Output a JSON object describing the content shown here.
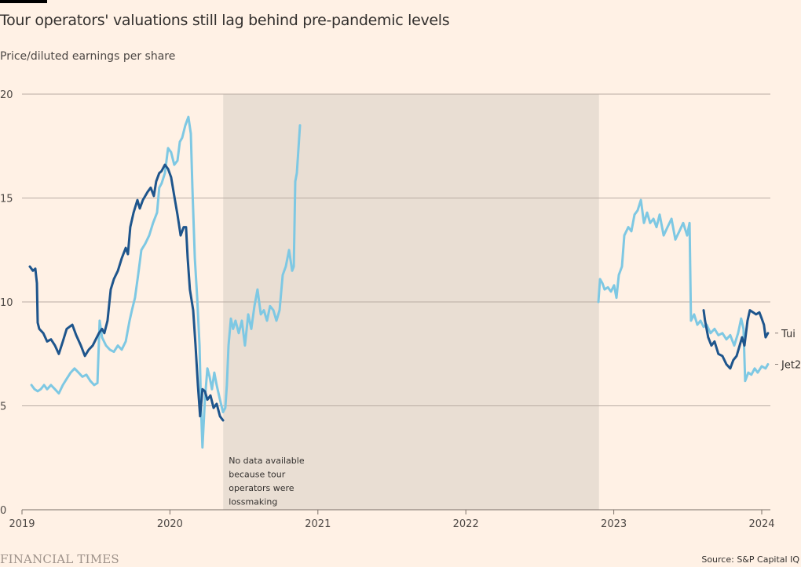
{
  "header": {
    "title": "Tour operators' valuations still lag behind pre-pandemic levels",
    "subtitle": "Price/diluted earnings per share"
  },
  "footer": {
    "brand": "FINANCIAL TIMES",
    "source": "Source: S&P Capital IQ"
  },
  "colors": {
    "background": "#fff1e5",
    "tui": "#1e558c",
    "jet2": "#7ec8e3",
    "shading": "#e9ded3",
    "gridline": "#b9aca3",
    "axis": "#7a6f68"
  },
  "chart_data": {
    "type": "line",
    "title": "Tour operators' valuations still lag behind pre-pandemic levels",
    "subtitle": "Price/diluted earnings per share",
    "xlabel": "",
    "ylabel": "Price/diluted earnings per share",
    "xlim": [
      2019.0,
      2024.06
    ],
    "ylim": [
      0,
      20
    ],
    "yticks": [
      0,
      5,
      10,
      15,
      20
    ],
    "ytick_labels": [
      "0",
      "5",
      "10",
      "15",
      "20"
    ],
    "xticks": [
      2019,
      2020,
      2021,
      2022,
      2023,
      2024
    ],
    "xtick_labels": [
      "2019",
      "2020",
      "2021",
      "2022",
      "2023",
      "2024"
    ],
    "grid": true,
    "legend": "right-end-labels",
    "shaded_regions": [
      {
        "from": 2020.36,
        "to": 2022.9,
        "annotation": [
          "No data available",
          "because tour",
          "operators were",
          "lossmaking"
        ]
      }
    ],
    "series": [
      {
        "name": "Tui",
        "label_value": 8.5,
        "segments": [
          [
            [
              2019.053,
              11.7
            ],
            [
              2019.074,
              11.5
            ],
            [
              2019.09,
              11.6
            ],
            [
              2019.101,
              10.9
            ],
            [
              2019.106,
              9.0
            ],
            [
              2019.117,
              8.7
            ],
            [
              2019.144,
              8.5
            ],
            [
              2019.17,
              8.1
            ],
            [
              2019.196,
              8.2
            ],
            [
              2019.223,
              7.9
            ],
            [
              2019.249,
              7.5
            ],
            [
              2019.276,
              8.1
            ],
            [
              2019.302,
              8.7
            ],
            [
              2019.34,
              8.9
            ],
            [
              2019.366,
              8.4
            ],
            [
              2019.398,
              7.9
            ],
            [
              2019.425,
              7.4
            ],
            [
              2019.451,
              7.7
            ],
            [
              2019.478,
              7.9
            ],
            [
              2019.499,
              8.2
            ],
            [
              2019.52,
              8.5
            ],
            [
              2019.541,
              8.7
            ],
            [
              2019.557,
              8.5
            ],
            [
              2019.578,
              9.1
            ],
            [
              2019.6,
              10.6
            ],
            [
              2019.621,
              11.1
            ],
            [
              2019.648,
              11.5
            ],
            [
              2019.674,
              12.1
            ],
            [
              2019.701,
              12.6
            ],
            [
              2019.716,
              12.3
            ],
            [
              2019.732,
              13.6
            ],
            [
              2019.754,
              14.3
            ],
            [
              2019.78,
              14.9
            ],
            [
              2019.796,
              14.5
            ],
            [
              2019.817,
              14.9
            ],
            [
              2019.849,
              15.3
            ],
            [
              2019.87,
              15.5
            ],
            [
              2019.891,
              15.1
            ],
            [
              2019.907,
              15.8
            ],
            [
              2019.928,
              16.2
            ],
            [
              2019.944,
              16.3
            ],
            [
              2019.966,
              16.6
            ],
            [
              2019.987,
              16.4
            ],
            [
              2020.008,
              16.0
            ],
            [
              2020.029,
              15.1
            ],
            [
              2020.051,
              14.2
            ],
            [
              2020.072,
              13.2
            ],
            [
              2020.093,
              13.6
            ],
            [
              2020.109,
              13.6
            ],
            [
              2020.12,
              12.1
            ],
            [
              2020.135,
              10.6
            ],
            [
              2020.157,
              9.6
            ],
            [
              2020.173,
              7.9
            ],
            [
              2020.189,
              6.0
            ],
            [
              2020.204,
              4.5
            ],
            [
              2020.22,
              5.8
            ],
            [
              2020.236,
              5.7
            ],
            [
              2020.253,
              5.3
            ],
            [
              2020.274,
              5.5
            ],
            [
              2020.295,
              4.9
            ],
            [
              2020.316,
              5.1
            ],
            [
              2020.338,
              4.5
            ],
            [
              2020.359,
              4.3
            ]
          ],
          [
            [
              2023.607,
              9.6
            ],
            [
              2023.617,
              9.1
            ],
            [
              2023.638,
              8.3
            ],
            [
              2023.66,
              7.9
            ],
            [
              2023.681,
              8.1
            ],
            [
              2023.707,
              7.5
            ],
            [
              2023.734,
              7.4
            ],
            [
              2023.761,
              7.0
            ],
            [
              2023.787,
              6.8
            ],
            [
              2023.808,
              7.2
            ],
            [
              2023.83,
              7.4
            ],
            [
              2023.851,
              7.9
            ],
            [
              2023.867,
              8.3
            ],
            [
              2023.883,
              7.9
            ],
            [
              2023.904,
              9.1
            ],
            [
              2023.92,
              9.6
            ],
            [
              2023.941,
              9.5
            ],
            [
              2023.962,
              9.4
            ],
            [
              2023.984,
              9.5
            ],
            [
              2024.0,
              9.2
            ],
            [
              2024.015,
              8.9
            ],
            [
              2024.026,
              8.3
            ],
            [
              2024.042,
              8.5
            ]
          ]
        ]
      },
      {
        "name": "Jet2",
        "label_value": 7.0,
        "segments": [
          [
            [
              2019.064,
              6.0
            ],
            [
              2019.085,
              5.8
            ],
            [
              2019.106,
              5.7
            ],
            [
              2019.127,
              5.8
            ],
            [
              2019.149,
              6.0
            ],
            [
              2019.17,
              5.8
            ],
            [
              2019.196,
              6.0
            ],
            [
              2019.223,
              5.8
            ],
            [
              2019.249,
              5.6
            ],
            [
              2019.276,
              6.0
            ],
            [
              2019.302,
              6.3
            ],
            [
              2019.329,
              6.6
            ],
            [
              2019.355,
              6.8
            ],
            [
              2019.382,
              6.6
            ],
            [
              2019.408,
              6.4
            ],
            [
              2019.435,
              6.5
            ],
            [
              2019.462,
              6.2
            ],
            [
              2019.488,
              6.0
            ],
            [
              2019.51,
              6.1
            ],
            [
              2019.525,
              9.1
            ],
            [
              2019.541,
              8.3
            ],
            [
              2019.568,
              7.9
            ],
            [
              2019.594,
              7.7
            ],
            [
              2019.621,
              7.6
            ],
            [
              2019.648,
              7.9
            ],
            [
              2019.674,
              7.7
            ],
            [
              2019.701,
              8.1
            ],
            [
              2019.727,
              9.1
            ],
            [
              2019.743,
              9.6
            ],
            [
              2019.764,
              10.2
            ],
            [
              2019.785,
              11.3
            ],
            [
              2019.807,
              12.5
            ],
            [
              2019.833,
              12.8
            ],
            [
              2019.86,
              13.2
            ],
            [
              2019.886,
              13.8
            ],
            [
              2019.913,
              14.3
            ],
            [
              2019.928,
              15.5
            ],
            [
              2019.944,
              15.7
            ],
            [
              2019.966,
              16.2
            ],
            [
              2019.987,
              17.4
            ],
            [
              2020.008,
              17.2
            ],
            [
              2020.029,
              16.6
            ],
            [
              2020.051,
              16.8
            ],
            [
              2020.067,
              17.7
            ],
            [
              2020.083,
              17.9
            ],
            [
              2020.104,
              18.5
            ],
            [
              2020.125,
              18.9
            ],
            [
              2020.141,
              18.1
            ],
            [
              2020.152,
              15.5
            ],
            [
              2020.168,
              12.1
            ],
            [
              2020.184,
              10.2
            ],
            [
              2020.2,
              7.9
            ],
            [
              2020.21,
              4.9
            ],
            [
              2020.22,
              3.0
            ],
            [
              2020.236,
              5.3
            ],
            [
              2020.253,
              6.8
            ],
            [
              2020.268,
              6.4
            ],
            [
              2020.284,
              5.8
            ],
            [
              2020.3,
              6.6
            ],
            [
              2020.316,
              6.0
            ],
            [
              2020.338,
              5.3
            ],
            [
              2020.359,
              4.7
            ],
            [
              2020.374,
              4.9
            ],
            [
              2020.385,
              6.0
            ],
            [
              2020.396,
              7.9
            ],
            [
              2020.412,
              9.2
            ],
            [
              2020.427,
              8.7
            ],
            [
              2020.443,
              9.1
            ],
            [
              2020.465,
              8.5
            ],
            [
              2020.486,
              9.1
            ],
            [
              2020.507,
              7.9
            ],
            [
              2020.529,
              9.4
            ],
            [
              2020.55,
              8.7
            ],
            [
              2020.571,
              9.8
            ],
            [
              2020.592,
              10.6
            ],
            [
              2020.614,
              9.4
            ],
            [
              2020.635,
              9.6
            ],
            [
              2020.656,
              9.1
            ],
            [
              2020.677,
              9.8
            ],
            [
              2020.699,
              9.6
            ],
            [
              2020.72,
              9.1
            ],
            [
              2020.741,
              9.6
            ],
            [
              2020.762,
              11.3
            ],
            [
              2020.783,
              11.7
            ],
            [
              2020.805,
              12.5
            ],
            [
              2020.826,
              11.5
            ],
            [
              2020.837,
              11.7
            ],
            [
              2020.847,
              15.8
            ],
            [
              2020.858,
              16.2
            ],
            [
              2020.869,
              17.4
            ],
            [
              2020.879,
              18.5
            ]
          ],
          [
            [
              2022.896,
              10.0
            ],
            [
              2022.907,
              11.1
            ],
            [
              2022.923,
              10.9
            ],
            [
              2022.938,
              10.6
            ],
            [
              2022.96,
              10.7
            ],
            [
              2022.981,
              10.5
            ],
            [
              2023.002,
              10.8
            ],
            [
              2023.018,
              10.2
            ],
            [
              2023.034,
              11.3
            ],
            [
              2023.055,
              11.7
            ],
            [
              2023.071,
              13.2
            ],
            [
              2023.098,
              13.6
            ],
            [
              2023.119,
              13.4
            ],
            [
              2023.14,
              14.2
            ],
            [
              2023.161,
              14.4
            ],
            [
              2023.183,
              14.9
            ],
            [
              2023.204,
              13.8
            ],
            [
              2023.225,
              14.3
            ],
            [
              2023.246,
              13.8
            ],
            [
              2023.268,
              14.0
            ],
            [
              2023.289,
              13.6
            ],
            [
              2023.31,
              14.2
            ],
            [
              2023.337,
              13.2
            ],
            [
              2023.363,
              13.6
            ],
            [
              2023.39,
              14.0
            ],
            [
              2023.416,
              13.0
            ],
            [
              2023.443,
              13.4
            ],
            [
              2023.469,
              13.8
            ],
            [
              2023.496,
              13.2
            ],
            [
              2023.512,
              13.8
            ],
            [
              2023.522,
              9.1
            ],
            [
              2023.543,
              9.4
            ],
            [
              2023.565,
              8.9
            ],
            [
              2023.586,
              9.1
            ],
            [
              2023.607,
              8.8
            ],
            [
              2023.628,
              8.9
            ],
            [
              2023.654,
              8.5
            ],
            [
              2023.681,
              8.7
            ],
            [
              2023.707,
              8.4
            ],
            [
              2023.734,
              8.5
            ],
            [
              2023.761,
              8.2
            ],
            [
              2023.787,
              8.4
            ],
            [
              2023.814,
              7.9
            ],
            [
              2023.84,
              8.5
            ],
            [
              2023.861,
              9.2
            ],
            [
              2023.877,
              8.7
            ],
            [
              2023.888,
              6.2
            ],
            [
              2023.909,
              6.6
            ],
            [
              2023.93,
              6.5
            ],
            [
              2023.952,
              6.8
            ],
            [
              2023.973,
              6.6
            ],
            [
              2024.0,
              6.9
            ],
            [
              2024.026,
              6.8
            ],
            [
              2024.042,
              7.0
            ]
          ]
        ]
      }
    ]
  }
}
